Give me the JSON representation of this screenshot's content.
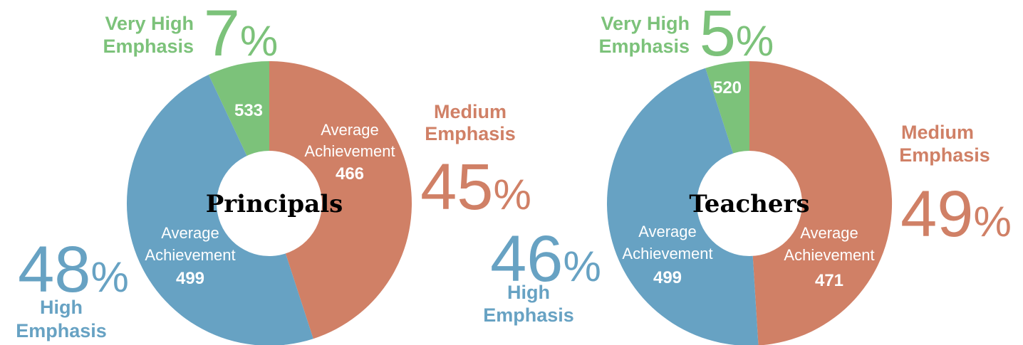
{
  "chart_data": [
    {
      "type": "pie",
      "center_label": "Principals",
      "slices": [
        {
          "category_line1": "Very High",
          "category_line2": "Emphasis",
          "percent": 7,
          "percent_text": "7",
          "avg_label_line1": "",
          "avg_label_line2": "",
          "avg_value": "533",
          "color": "#7cc27a"
        },
        {
          "category_line1": "Medium",
          "category_line2": "Emphasis",
          "percent": 45,
          "percent_text": "45",
          "avg_label_line1": "Average",
          "avg_label_line2": "Achievement",
          "avg_value": "466",
          "color": "#d08066"
        },
        {
          "category_line1": "High",
          "category_line2": "Emphasis",
          "percent": 48,
          "percent_text": "48",
          "avg_label_line1": "Average",
          "avg_label_line2": "Achievement",
          "avg_value": "499",
          "color": "#67a2c3"
        }
      ]
    },
    {
      "type": "pie",
      "center_label": "Teachers",
      "slices": [
        {
          "category_line1": "Very High",
          "category_line2": "Emphasis",
          "percent": 5,
          "percent_text": "5",
          "avg_label_line1": "",
          "avg_label_line2": "",
          "avg_value": "520",
          "color": "#7cc27a"
        },
        {
          "category_line1": "Medium",
          "category_line2": "Emphasis",
          "percent": 49,
          "percent_text": "49",
          "avg_label_line1": "Average",
          "avg_label_line2": "Achievement",
          "avg_value": "471",
          "color": "#d08066"
        },
        {
          "category_line1": "High",
          "category_line2": "Emphasis",
          "percent": 46,
          "percent_text": "46",
          "avg_label_line1": "Average",
          "avg_label_line2": "Achievement",
          "avg_value": "499",
          "color": "#67a2c3"
        }
      ]
    }
  ],
  "percent_symbol": "%"
}
